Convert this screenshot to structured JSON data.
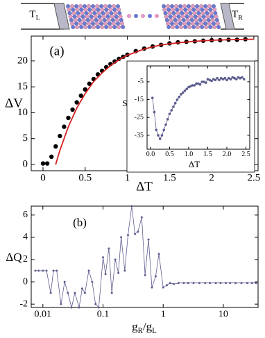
{
  "schematic": {
    "left_label": [
      "T",
      "L"
    ],
    "right_label": [
      "T",
      "R"
    ]
  },
  "chart_data": [
    {
      "type": "scatter",
      "panel_label": "(a)",
      "xlabel": "ΔT",
      "ylabel": "ΔV",
      "xlim": [
        -0.14,
        2.55
      ],
      "ylim": [
        -1.2,
        24.8
      ],
      "xticks": [
        0,
        0.5,
        1,
        1.5,
        2,
        2.5
      ],
      "yticks": [
        0,
        5,
        10,
        15,
        20
      ],
      "series": [
        {
          "mode": "markers",
          "color": "#000000",
          "x": [
            0,
            0.05,
            0.1,
            0.15,
            0.2,
            0.25,
            0.3,
            0.35,
            0.4,
            0.45,
            0.5,
            0.55,
            0.6,
            0.65,
            0.7,
            0.75,
            0.8,
            0.85,
            0.9,
            0.95,
            1.0,
            1.1,
            1.2,
            1.3,
            1.4,
            1.5,
            1.6,
            1.7,
            1.8,
            1.9,
            2.0,
            2.1,
            2.2,
            2.3,
            2.4
          ],
          "values": [
            0.2,
            0.2,
            1.5,
            3.5,
            5.5,
            7.3,
            9,
            10.6,
            12,
            13.3,
            14.5,
            15.6,
            16.5,
            17.4,
            18.1,
            18.8,
            19.4,
            19.9,
            20.4,
            20.8,
            21.2,
            21.9,
            22.4,
            22.8,
            23.1,
            23.4,
            23.6,
            23.7,
            23.8,
            23.9,
            24,
            24,
            24.1,
            24.1,
            24.2
          ]
        },
        {
          "mode": "line",
          "color": "#d42020",
          "x": [
            0.15,
            0.2,
            0.3,
            0.4,
            0.5,
            0.6,
            0.7,
            0.8,
            0.9,
            1.0,
            1.2,
            1.4,
            1.6,
            1.8,
            2.0,
            2.2,
            2.5
          ],
          "values": [
            0,
            2.73,
            7.29,
            10.9,
            13.7,
            16.0,
            17.7,
            19.1,
            20.2,
            21.1,
            22.3,
            23.1,
            23.5,
            23.8,
            24.0,
            24.1,
            24.2
          ]
        }
      ]
    },
    {
      "type": "line",
      "xlabel": "ΔT",
      "ylabel": "S",
      "xlim": [
        -0.09,
        2.6
      ],
      "ylim": [
        -42.8,
        3.9
      ],
      "xticks": [
        {
          "value": 0,
          "label": "0.0"
        },
        {
          "value": 0.5,
          "label": "0.5"
        },
        {
          "value": 1,
          "label": "1.0"
        },
        {
          "value": 1.5,
          "label": "1.5"
        },
        {
          "value": 2,
          "label": "2.0"
        },
        {
          "value": 2.5,
          "label": "2.5"
        }
      ],
      "yticks": [
        -5,
        -15,
        -25,
        -35
      ],
      "series": [
        {
          "mode": "lines+markers",
          "color": "#5c5c8e",
          "x": [
            0.05,
            0.1,
            0.15,
            0.2,
            0.25,
            0.3,
            0.35,
            0.4,
            0.45,
            0.5,
            0.55,
            0.6,
            0.65,
            0.7,
            0.75,
            0.8,
            0.85,
            0.9,
            0.95,
            1.0,
            1.05,
            1.1,
            1.15,
            1.2,
            1.25,
            1.3,
            1.35,
            1.4,
            1.45,
            1.5,
            1.55,
            1.6,
            1.65,
            1.7,
            1.75,
            1.8,
            1.85,
            1.9,
            1.95,
            2.0,
            2.05,
            2.1,
            2.15,
            2.2,
            2.25,
            2.3,
            2.35,
            2.4,
            2.45
          ],
          "values": [
            -14,
            -22,
            -32,
            -35,
            -37,
            -35,
            -32,
            -29,
            -26,
            -23,
            -21,
            -19,
            -17,
            -15,
            -13.5,
            -12,
            -11,
            -10,
            -9,
            -8,
            -7.5,
            -7,
            -7,
            -6,
            -6,
            -6.5,
            -5,
            -5,
            -5.5,
            -3.5,
            -4,
            -4.5,
            -3.5,
            -4,
            -3,
            -4,
            -3,
            -3.5,
            -3,
            -4,
            -3,
            -3.5,
            -2.5,
            -3,
            -3.5,
            -2.5,
            -3,
            -2.5,
            -3.5
          ]
        }
      ]
    },
    {
      "type": "line",
      "panel_label": "(b)",
      "xlabel": [
        "g",
        "R",
        "/g",
        "L"
      ],
      "ylabel": "ΔQ",
      "xlog": true,
      "xlim": [
        0.0064,
        37.8
      ],
      "ylim": [
        -2.3,
        6.8
      ],
      "xticks": [
        0.01,
        0.1,
        1,
        10
      ],
      "yticks": [
        -2,
        0,
        2,
        4,
        6
      ],
      "series": [
        {
          "mode": "lines+markers",
          "color": "#5c5c8e",
          "x": [
            0.0075,
            0.0085,
            0.01,
            0.0115,
            0.0135,
            0.015,
            0.017,
            0.02,
            0.023,
            0.026,
            0.03,
            0.034,
            0.04,
            0.045,
            0.05,
            0.058,
            0.066,
            0.075,
            0.085,
            0.1,
            0.11,
            0.125,
            0.14,
            0.16,
            0.18,
            0.2,
            0.23,
            0.26,
            0.3,
            0.34,
            0.38,
            0.44,
            0.5,
            0.57,
            0.65,
            0.75,
            0.85,
            1.0,
            1.15,
            1.3,
            1.5,
            1.8,
            2.2,
            2.6,
            3.2,
            4,
            5,
            6,
            7.5,
            9,
            11,
            13,
            16,
            20,
            25,
            30,
            35
          ],
          "values": [
            1,
            1,
            1,
            1,
            -1,
            1,
            1,
            -2,
            0,
            -1,
            -2.3,
            -1,
            -2.3,
            -0.6,
            -1,
            1,
            0,
            -2,
            -2.3,
            2.2,
            0.7,
            3,
            -1,
            2,
            0.8,
            4,
            1,
            4.2,
            6.8,
            4.3,
            4.5,
            5.8,
            0.6,
            3.8,
            -0.5,
            0.5,
            2.5,
            -0.5,
            -0.3,
            -0.1,
            -0.2,
            -0.1,
            -0.1,
            -0.1,
            -0.1,
            -0.1,
            -0.1,
            -0.1,
            -0.1,
            -0.1,
            -0.1,
            -0.1,
            -0.1,
            -0.1,
            -0.1,
            -0.1,
            -0.1
          ]
        }
      ]
    }
  ]
}
